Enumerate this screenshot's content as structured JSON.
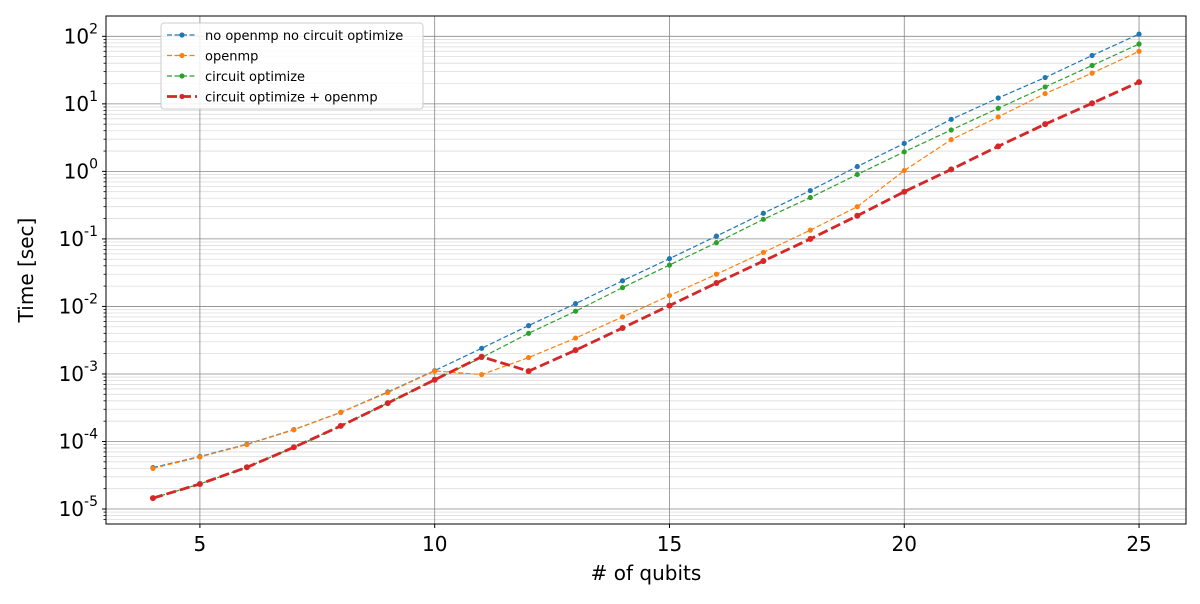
{
  "chart_data": {
    "type": "line",
    "title": "",
    "xlabel": "# of qubits",
    "ylabel": "Time [sec]",
    "xlim": [
      3.0,
      26.0
    ],
    "ylim": [
      6e-06,
      200
    ],
    "yscale": "log",
    "grid": true,
    "legend_position": "upper left",
    "x": [
      4,
      5,
      6,
      7,
      8,
      9,
      10,
      11,
      12,
      13,
      14,
      15,
      16,
      17,
      18,
      19,
      20,
      21,
      22,
      23,
      24,
      25
    ],
    "x_ticks": [
      5,
      10,
      15,
      20,
      25
    ],
    "x_tick_labels": [
      "5",
      "10",
      "15",
      "20",
      "25"
    ],
    "y_ticks": [
      {
        "exp": "-5",
        "value": 1e-05
      },
      {
        "exp": "-4",
        "value": 0.0001
      },
      {
        "exp": "-3",
        "value": 0.001
      },
      {
        "exp": "-2",
        "value": 0.01
      },
      {
        "exp": "-1",
        "value": 0.1
      },
      {
        "exp": "0",
        "value": 1
      },
      {
        "exp": "1",
        "value": 10
      },
      {
        "exp": "2",
        "value": 100
      }
    ],
    "y_tick_base": "10",
    "series": [
      {
        "name": "no openmp no circuit optimize",
        "color": "#1f77b4",
        "style": "dashed",
        "values": [
          4.1e-05,
          6e-05,
          9.1e-05,
          0.00015,
          0.00027,
          0.00054,
          0.00112,
          0.0024,
          0.0052,
          0.011,
          0.024,
          0.051,
          0.11,
          0.24,
          0.52,
          1.18,
          2.6,
          5.9,
          12.2,
          24.5,
          52,
          108
        ]
      },
      {
        "name": "openmp",
        "color": "#ff7f0e",
        "style": "dashed",
        "values": [
          4e-05,
          5.9e-05,
          9e-05,
          0.000149,
          0.00027,
          0.00053,
          0.00111,
          0.00098,
          0.00175,
          0.0034,
          0.007,
          0.0145,
          0.03,
          0.063,
          0.135,
          0.3,
          1.03,
          2.95,
          6.4,
          14.2,
          28.5,
          60
        ]
      },
      {
        "name": "circuit optimize",
        "color": "#2ca02c",
        "style": "dashed",
        "values": [
          1.45e-05,
          2.35e-05,
          4.15e-05,
          8.2e-05,
          0.00017,
          0.00037,
          0.00082,
          0.00175,
          0.004,
          0.0085,
          0.019,
          0.041,
          0.088,
          0.195,
          0.41,
          0.9,
          1.95,
          4.1,
          8.6,
          17.8,
          37,
          77
        ]
      },
      {
        "name": "circuit optimize + openmp",
        "color": "#d62728",
        "style": "dashed-bold",
        "values": [
          1.45e-05,
          2.35e-05,
          4.15e-05,
          8.2e-05,
          0.00017,
          0.00037,
          0.00082,
          0.0018,
          0.0011,
          0.00225,
          0.0048,
          0.0103,
          0.0222,
          0.047,
          0.1,
          0.22,
          0.5,
          1.07,
          2.35,
          5.0,
          10.2,
          21
        ]
      }
    ]
  }
}
